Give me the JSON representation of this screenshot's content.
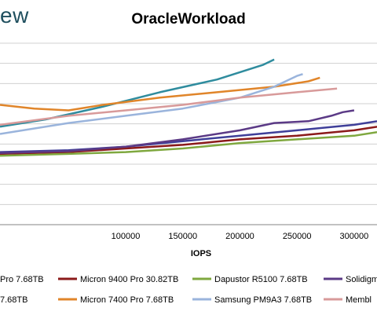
{
  "header": {
    "brand": "ew",
    "title": "OracleWorkload"
  },
  "chart_data": {
    "type": "line",
    "title": "OracleWorkload",
    "xlabel": "IOPS",
    "ylabel": "",
    "xlim": [
      -10000,
      320000
    ],
    "ylim": [
      0,
      10
    ],
    "x_ticks": [
      100000,
      150000,
      200000,
      250000,
      300000
    ],
    "x_tick_labels": [
      "100000",
      "150000",
      "200000",
      "250000",
      "300000"
    ],
    "grid": true,
    "legend_position": "bottom",
    "series": [
      {
        "name": "Pro 7.68TB",
        "color": "#3f3f99",
        "points": [
          [
            -10000,
            4.0
          ],
          [
            50000,
            4.1
          ],
          [
            100000,
            4.3
          ],
          [
            150000,
            4.6
          ],
          [
            200000,
            4.9
          ],
          [
            250000,
            5.2
          ],
          [
            300000,
            5.5
          ],
          [
            320000,
            5.7
          ]
        ]
      },
      {
        "name": "Micron 9400 Pro 30.82TB",
        "color": "#8b1a1a",
        "points": [
          [
            -10000,
            3.9
          ],
          [
            50000,
            4.0
          ],
          [
            100000,
            4.2
          ],
          [
            150000,
            4.4
          ],
          [
            200000,
            4.7
          ],
          [
            250000,
            4.9
          ],
          [
            300000,
            5.2
          ],
          [
            320000,
            5.4
          ]
        ]
      },
      {
        "name": "Dapustor R5100 7.68TB",
        "color": "#7fa83f",
        "points": [
          [
            -10000,
            3.8
          ],
          [
            50000,
            3.9
          ],
          [
            100000,
            4.0
          ],
          [
            150000,
            4.2
          ],
          [
            200000,
            4.5
          ],
          [
            250000,
            4.7
          ],
          [
            300000,
            4.9
          ],
          [
            320000,
            5.1
          ]
        ]
      },
      {
        "name": "Solidigm",
        "color": "#5b3a86",
        "points": [
          [
            -10000,
            3.95
          ],
          [
            50000,
            4.05
          ],
          [
            100000,
            4.3
          ],
          [
            150000,
            4.7
          ],
          [
            200000,
            5.2
          ],
          [
            230000,
            5.6
          ],
          [
            260000,
            5.7
          ],
          [
            280000,
            6.0
          ],
          [
            290000,
            6.2
          ],
          [
            300000,
            6.3
          ]
        ]
      },
      {
        "name": "7.68TB",
        "color": "#2f8c9e",
        "points": [
          [
            -10000,
            5.4
          ],
          [
            30000,
            5.8
          ],
          [
            80000,
            6.5
          ],
          [
            130000,
            7.3
          ],
          [
            180000,
            8.0
          ],
          [
            210000,
            8.6
          ],
          [
            220000,
            8.8
          ],
          [
            230000,
            9.1
          ]
        ]
      },
      {
        "name": "Micron 7400 Pro 7.68TB",
        "color": "#e0852a",
        "points": [
          [
            -10000,
            6.6
          ],
          [
            20000,
            6.4
          ],
          [
            50000,
            6.3
          ],
          [
            80000,
            6.6
          ],
          [
            130000,
            7.0
          ],
          [
            180000,
            7.3
          ],
          [
            230000,
            7.6
          ],
          [
            260000,
            7.9
          ],
          [
            270000,
            8.1
          ]
        ]
      },
      {
        "name": "Samsung PM9A3 7.68TB",
        "color": "#9ab4dc",
        "points": [
          [
            -10000,
            5.0
          ],
          [
            50000,
            5.6
          ],
          [
            100000,
            6.0
          ],
          [
            150000,
            6.4
          ],
          [
            200000,
            7.0
          ],
          [
            230000,
            7.6
          ],
          [
            250000,
            8.2
          ],
          [
            255000,
            8.3
          ]
        ]
      },
      {
        "name": "Membl",
        "color": "#d89a9a",
        "points": [
          [
            -10000,
            5.5
          ],
          [
            50000,
            6.0
          ],
          [
            100000,
            6.3
          ],
          [
            150000,
            6.6
          ],
          [
            200000,
            7.0
          ],
          [
            250000,
            7.3
          ],
          [
            285000,
            7.5
          ]
        ]
      }
    ]
  }
}
